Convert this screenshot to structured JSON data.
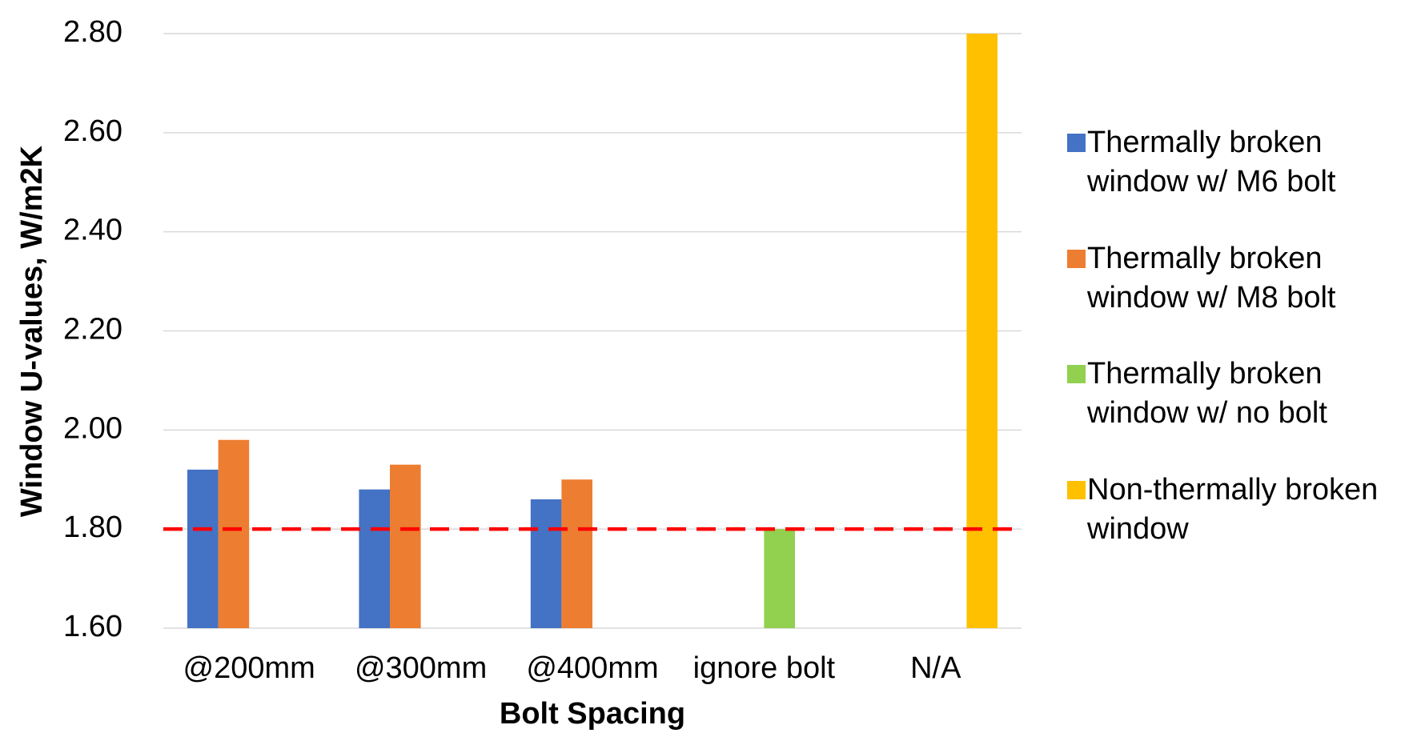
{
  "chart_data": {
    "type": "bar",
    "x_label": "Bolt Spacing",
    "y_label": "Window U-values, W/m2K",
    "categories": [
      "@200mm",
      "@300mm",
      "@400mm",
      "ignore bolt",
      "N/A"
    ],
    "series": [
      {
        "name": "Thermally broken window w/ M6 bolt",
        "color": "#4472c4",
        "values": [
          1.92,
          1.88,
          1.86,
          null,
          null
        ]
      },
      {
        "name": "Thermally broken window w/ M8 bolt",
        "color": "#ed7d31",
        "values": [
          1.98,
          1.93,
          1.9,
          null,
          null
        ]
      },
      {
        "name": "Thermally broken window w/ no bolt",
        "color": "#92d050",
        "values": [
          null,
          null,
          null,
          1.8,
          null
        ]
      },
      {
        "name": "Non-thermally broken window",
        "color": "#ffc000",
        "values": [
          null,
          null,
          null,
          null,
          2.8
        ]
      }
    ],
    "ylim": [
      1.6,
      2.8
    ],
    "yticks": [
      {
        "value": 1.6,
        "label": "1.60"
      },
      {
        "value": 1.8,
        "label": "1.80"
      },
      {
        "value": 2.0,
        "label": "2.00"
      },
      {
        "value": 2.2,
        "label": "2.20"
      },
      {
        "value": 2.4,
        "label": "2.40"
      },
      {
        "value": 2.6,
        "label": "2.60"
      },
      {
        "value": 2.8,
        "label": "2.80"
      }
    ],
    "grid": true,
    "legend": "right",
    "reference_line": {
      "value": 1.8,
      "color": "#ff0000",
      "style": "dashed"
    }
  }
}
